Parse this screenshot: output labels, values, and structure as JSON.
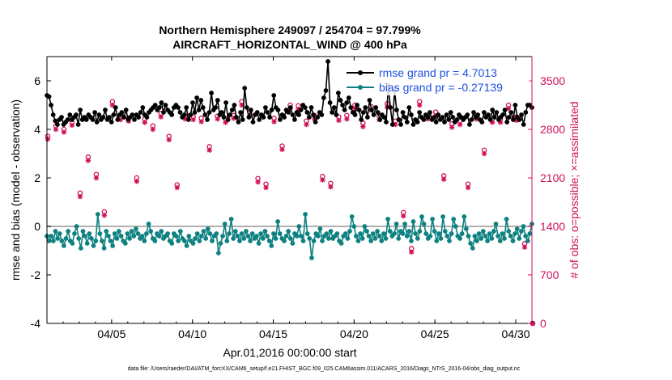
{
  "chart_data": {
    "type": "line",
    "title": "Northern Hemisphere 249097 / 254704 = 97.799%",
    "subtitle": "AIRCRAFT_HORIZONTAL_WIND @ 400 hPa",
    "xlabel": "Apr.01,2016 00:00:00 start",
    "ylabel_left": "rmse and bias (model - observation)",
    "ylabel_right": "# of obs: o=possible; ×=assimilated",
    "xlim": [
      1,
      31
    ],
    "ylim": [
      -4,
      7
    ],
    "ylim_right": [
      0,
      3850
    ],
    "x_ticks": [
      5,
      10,
      15,
      20,
      25,
      30
    ],
    "x_tick_labels": [
      "04/05",
      "04/10",
      "04/15",
      "04/20",
      "04/25",
      "04/30"
    ],
    "y_ticks": [
      -4,
      -2,
      0,
      2,
      4,
      6
    ],
    "y_tick_labels": [
      "-4",
      "-2",
      "0",
      "2",
      "4",
      "6"
    ],
    "y2_ticks": [
      0,
      700,
      1400,
      2100,
      2800,
      3500
    ],
    "y2_tick_labels": [
      "0",
      "700",
      "1400",
      "2100",
      "2800",
      "3500"
    ],
    "footnote": "data file: /Users/raeder/DAI/ATM_forcXX/CAM6_setup/f.e21.FHIST_BGC.f09_025.CAM6assim.011/ACARS_2016/Diags_NTrS_2016-04/obs_diag_output.nc",
    "colors": {
      "rmse": "#000000",
      "bias": "#0f8181",
      "obs": "#d0105a",
      "ylabel_right": "#d0105a",
      "legend_text": "#1f4fe0",
      "zero_line": "#b0b0b0"
    },
    "series": [
      {
        "name": "rmse grand pr = 4.7013",
        "values": [
          5.4,
          5.35,
          5.0,
          4.6,
          4.35,
          4.2,
          4.4,
          4.5,
          4.2,
          4.3,
          4.4,
          4.6,
          4.4,
          4.5,
          4.6,
          4.2,
          4.8,
          4.4,
          4.5,
          4.4,
          4.6,
          4.5,
          4.4,
          4.7,
          4.3,
          4.6,
          4.4,
          4.5,
          4.8,
          4.4,
          4.5,
          4.3,
          4.6,
          4.9,
          4.4,
          4.6,
          4.7,
          4.5,
          4.8,
          4.4,
          4.5,
          4.6,
          4.4,
          4.6,
          4.5,
          4.7,
          4.9,
          4.6,
          4.5,
          4.7,
          4.8,
          4.9,
          5.0,
          4.8,
          4.9,
          5.1,
          4.7,
          5.0,
          4.8,
          4.7,
          4.6,
          4.9,
          5.0,
          4.9,
          4.7,
          4.5,
          4.6,
          4.9,
          4.4,
          4.6,
          5.1,
          4.7,
          5.3,
          4.8,
          5.2,
          4.9,
          4.6,
          4.4,
          4.7,
          5.5,
          4.8,
          4.9,
          5.2,
          4.6,
          4.7,
          4.5,
          5.1,
          4.4,
          4.6,
          4.8,
          5.0,
          4.5,
          4.3,
          4.7,
          4.4,
          5.7,
          4.9,
          4.5,
          4.8,
          4.3,
          4.6,
          4.7,
          4.4,
          4.6,
          4.5,
          4.9,
          4.7,
          4.5,
          4.8,
          5.4,
          4.9,
          4.8,
          4.4,
          4.6,
          4.5,
          4.8,
          4.7,
          4.9,
          4.6,
          4.4,
          4.7,
          4.6,
          4.8,
          5.0,
          4.9,
          4.7,
          4.5,
          4.9,
          4.6,
          4.3,
          4.5,
          4.7,
          4.6,
          5.3,
          5.6,
          6.8,
          5.1,
          4.7,
          4.9,
          4.6,
          5.5,
          5.2,
          5.0,
          4.8,
          5.1,
          5.3,
          4.9,
          4.7,
          4.6,
          5.0,
          4.8,
          4.4,
          4.7,
          4.9,
          4.5,
          5.2,
          4.8,
          4.6,
          4.9,
          4.7,
          4.4,
          4.6,
          4.5,
          4.3,
          5.8,
          4.9,
          4.2,
          5.6,
          4.8,
          4.4,
          4.2,
          4.7,
          4.5,
          4.3,
          4.9,
          4.6,
          4.2,
          4.4,
          4.3,
          4.7,
          4.5,
          4.4,
          4.6,
          4.5,
          4.7,
          4.4,
          4.5,
          4.3,
          4.6,
          4.4,
          4.5,
          4.3,
          4.6,
          4.4,
          4.7,
          4.5,
          4.3,
          4.4,
          4.6,
          4.5,
          4.4,
          4.5,
          4.6,
          4.2,
          4.4,
          4.7,
          4.5,
          4.6,
          4.4,
          4.3,
          4.7,
          4.5,
          4.6,
          4.4,
          4.8,
          4.5,
          4.7,
          4.4,
          4.5,
          4.6,
          4.8,
          4.3,
          4.5,
          4.7,
          4.4,
          5.0,
          4.5,
          4.4,
          4.6,
          4.2,
          4.7,
          5.0,
          5.0,
          4.9
        ]
      },
      {
        "name": "bias grand pr = -0.27139",
        "values": [
          -0.4,
          -0.6,
          -0.4,
          -0.6,
          -0.2,
          -0.5,
          -0.3,
          -0.6,
          -0.8,
          -0.5,
          -0.2,
          -0.6,
          -0.7,
          -0.3,
          0.0,
          -0.5,
          -0.9,
          -0.2,
          -0.4,
          -0.7,
          -0.3,
          -0.5,
          -0.8,
          -0.6,
          0.5,
          -0.3,
          -0.6,
          -0.9,
          -0.2,
          -0.4,
          -0.6,
          -0.8,
          -0.3,
          -0.5,
          -0.2,
          -0.4,
          -0.6,
          -0.7,
          -0.3,
          -0.5,
          -0.2,
          -0.4,
          -0.1,
          -0.3,
          -0.5,
          -0.4,
          -0.6,
          -0.3,
          0.1,
          -0.2,
          -0.5,
          -0.6,
          -0.3,
          -0.4,
          -0.2,
          -0.5,
          -0.4,
          -0.3,
          -0.6,
          -0.7,
          -0.3,
          -0.4,
          -0.6,
          -0.2,
          -0.5,
          -0.6,
          -0.8,
          -0.4,
          -0.6,
          -0.7,
          -0.5,
          -0.3,
          -0.6,
          -0.4,
          -0.2,
          -0.5,
          -0.1,
          -0.3,
          -0.6,
          -0.4,
          -0.3,
          -1.1,
          -0.7,
          -0.4,
          0.1,
          -0.6,
          -0.3,
          0.3,
          -0.5,
          -0.2,
          -0.4,
          -0.6,
          -0.3,
          -0.5,
          -0.2,
          -0.4,
          -0.6,
          -0.3,
          -0.5,
          -0.4,
          -0.7,
          -0.3,
          -0.5,
          -0.2,
          -0.4,
          -0.6,
          -0.8,
          -0.3,
          -0.5,
          0.2,
          -0.3,
          -0.5,
          -0.6,
          -0.4,
          -0.2,
          -0.5,
          -0.7,
          -0.3,
          -0.4,
          0.0,
          -0.4,
          -0.6,
          0.5,
          -0.3,
          -0.5,
          -1.3,
          -0.6,
          -0.3,
          -0.4,
          -0.1,
          -0.6,
          -0.4,
          -0.3,
          -0.5,
          -0.2,
          -0.5,
          -0.4,
          -0.3,
          -0.6,
          -0.7,
          -0.4,
          -0.3,
          -0.5,
          -0.2,
          0.4,
          0.0,
          -0.4,
          -0.6,
          -0.3,
          -0.5,
          0.0,
          -0.2,
          -0.4,
          -0.6,
          -0.3,
          -0.5,
          -0.2,
          -0.4,
          -0.6,
          -0.3,
          -0.5,
          0.3,
          -0.2,
          -0.4,
          -0.3,
          0.1,
          -0.5,
          -0.2,
          -0.3,
          0.1,
          -0.4,
          -0.2,
          -0.6,
          0.2,
          -0.3,
          -0.5,
          -0.2,
          0.4,
          0.1,
          -0.3,
          -0.5,
          -0.4,
          0.3,
          -0.2,
          -0.6,
          -0.3,
          -0.5,
          0.4,
          -0.2,
          -0.4,
          -0.6,
          -0.3,
          0.3,
          0.0,
          -0.4,
          -0.5,
          -0.3,
          0.4,
          -0.1,
          -0.4,
          -0.7,
          -0.9,
          -0.4,
          -0.6,
          -0.3,
          -0.5,
          -0.2,
          -0.4,
          -0.6,
          -0.3,
          -0.5,
          -0.2,
          0.1,
          -0.4,
          -0.6,
          -0.3,
          -0.5,
          0.3,
          -0.2,
          -0.4,
          -0.6,
          -0.3,
          -0.1,
          -0.5,
          -0.2,
          0.0,
          -0.4,
          -0.6,
          -0.3,
          0.1
        ]
      }
    ],
    "obs_possible_start_day": 1.05,
    "obs_possible_step_days": 0.5,
    "obs_possible": [
      2700,
      2850,
      2800,
      2900,
      1880,
      2400,
      2150,
      1610,
      3200,
      2980,
      2960,
      2100,
      2950,
      2850,
      3030,
      2700,
      2000,
      2990,
      2980,
      2960,
      2550,
      2990,
      2950,
      3000,
      3200,
      3050,
      2090,
      2010,
      2960,
      2560,
      3150,
      3140,
      2920,
      3000,
      2120,
      2020,
      2980,
      3000,
      3150,
      2890,
      3130,
      2990,
      3170,
      2920,
      1600,
      1080,
      3200,
      3000,
      3050,
      2130,
      2880,
      2920,
      2010,
      3000,
      2500,
      2950,
      2950,
      3150,
      2980,
      1150,
      0
    ],
    "obs_assimilated_start_day": 1.05,
    "obs_assimilated_step_days": 0.5,
    "obs_assimilated": [
      2660,
      2800,
      2760,
      2860,
      1830,
      2350,
      2100,
      1560,
      3150,
      2940,
      2920,
      2050,
      2900,
      2800,
      2980,
      2650,
      1960,
      2950,
      2940,
      2910,
      2500,
      2950,
      2900,
      2960,
      3150,
      3000,
      2040,
      1960,
      2910,
      2510,
      3100,
      3090,
      2870,
      2950,
      2070,
      1970,
      2930,
      2950,
      3100,
      2840,
      3080,
      2940,
      3120,
      2870,
      1550,
      1030,
      3150,
      2950,
      3000,
      2080,
      2830,
      2870,
      1960,
      2950,
      2450,
      2900,
      2900,
      3100,
      2930,
      1100,
      0
    ]
  },
  "legend": {
    "location": "top-right"
  }
}
